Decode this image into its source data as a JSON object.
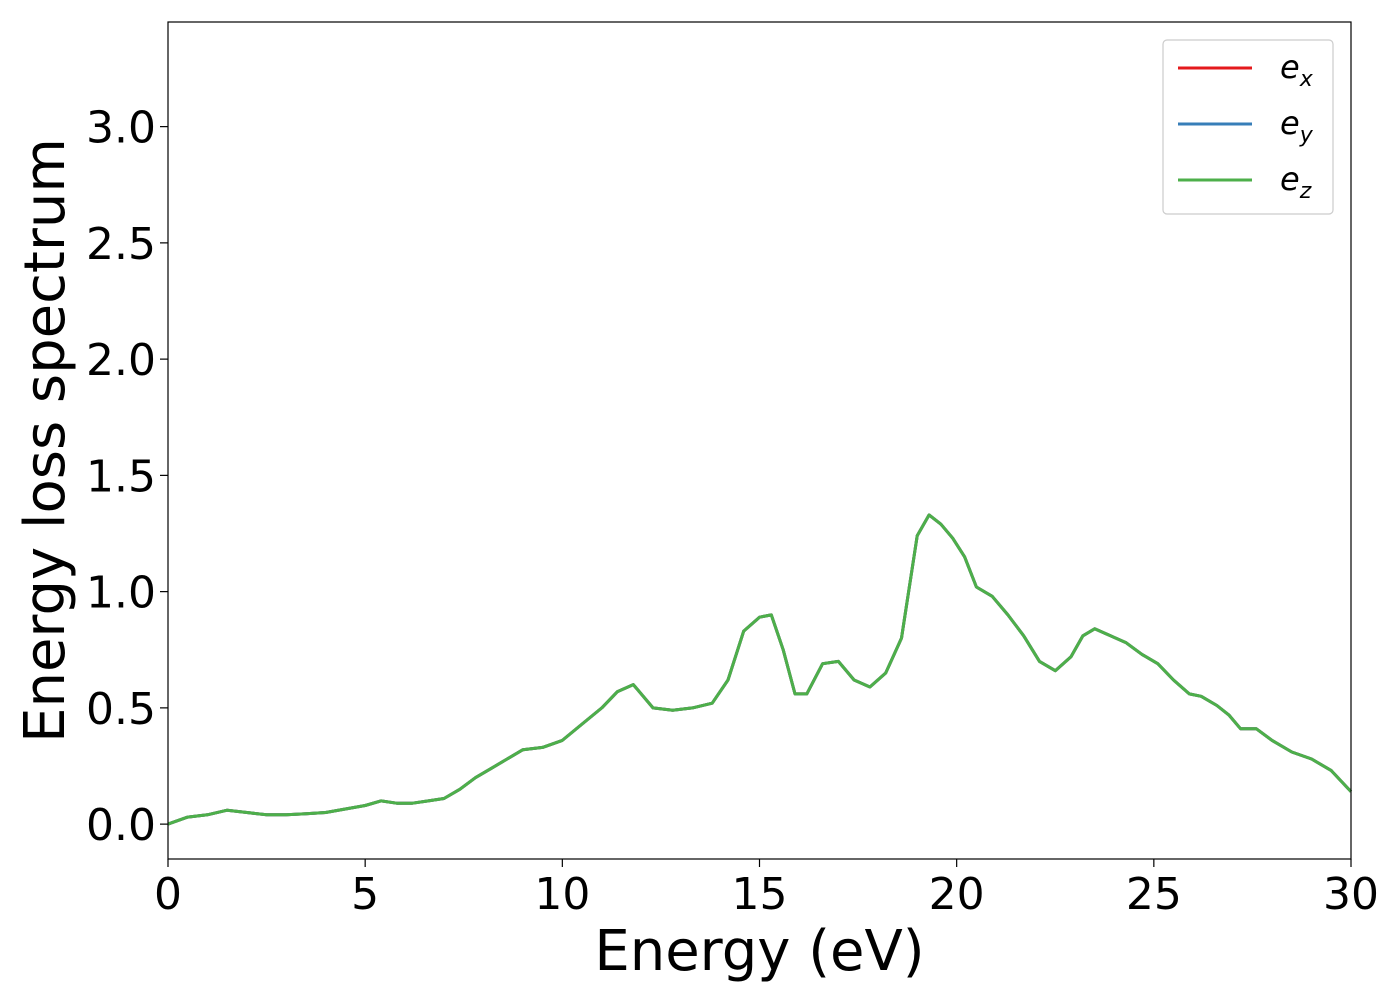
{
  "chart_data": {
    "type": "line",
    "title": "",
    "xlabel": "Energy (eV)",
    "ylabel": "Energy loss spectrum",
    "xlim": [
      0,
      30
    ],
    "ylim": [
      -0.15,
      3.45
    ],
    "xticks": [
      0,
      5,
      10,
      15,
      20,
      25,
      30
    ],
    "xtick_labels": [
      "0",
      "5",
      "10",
      "15",
      "20",
      "25",
      "30"
    ],
    "yticks": [
      0.0,
      0.5,
      1.0,
      1.5,
      2.0,
      2.5,
      3.0
    ],
    "ytick_labels": [
      "0.0",
      "0.5",
      "1.0",
      "1.5",
      "2.0",
      "2.5",
      "3.0"
    ],
    "grid": false,
    "legend_position": "top-right",
    "x": [
      0,
      0.5,
      1.0,
      1.5,
      2.0,
      2.5,
      3.0,
      3.5,
      4.0,
      4.5,
      5.0,
      5.4,
      5.8,
      6.2,
      6.6,
      7.0,
      7.4,
      7.8,
      8.2,
      8.6,
      9.0,
      9.5,
      10.0,
      10.5,
      11.0,
      11.4,
      11.8,
      12.3,
      12.8,
      13.3,
      13.8,
      14.2,
      14.6,
      15.0,
      15.3,
      15.6,
      15.9,
      16.2,
      16.6,
      17.0,
      17.4,
      17.8,
      18.2,
      18.6,
      19.0,
      19.3,
      19.6,
      19.9,
      20.2,
      20.5,
      20.9,
      21.3,
      21.7,
      22.1,
      22.5,
      22.9,
      23.2,
      23.5,
      23.9,
      24.3,
      24.7,
      25.1,
      25.5,
      25.9,
      26.2,
      26.6,
      26.9,
      27.2,
      27.6,
      28.0,
      28.5,
      29.0,
      29.5,
      30.0
    ],
    "series": [
      {
        "name": "e_x",
        "label_base": "e",
        "label_sub": "x",
        "color": "#e41a1c",
        "y": [
          0.0,
          0.03,
          0.04,
          0.06,
          0.05,
          0.04,
          0.04,
          0.045,
          0.05,
          0.065,
          0.08,
          0.1,
          0.09,
          0.09,
          0.1,
          0.11,
          0.15,
          0.2,
          0.24,
          0.28,
          0.32,
          0.33,
          0.36,
          0.43,
          0.5,
          0.57,
          0.6,
          0.5,
          0.49,
          0.5,
          0.52,
          0.62,
          0.83,
          0.89,
          0.9,
          0.75,
          0.56,
          0.56,
          0.69,
          0.7,
          0.62,
          0.59,
          0.65,
          0.8,
          1.24,
          1.33,
          1.29,
          1.23,
          1.15,
          1.02,
          0.98,
          0.9,
          0.81,
          0.7,
          0.66,
          0.72,
          0.81,
          0.84,
          0.81,
          0.78,
          0.73,
          0.69,
          0.62,
          0.56,
          0.55,
          0.51,
          0.47,
          0.41,
          0.41,
          0.36,
          0.31,
          0.28,
          0.23,
          0.14
        ]
      },
      {
        "name": "e_y",
        "label_base": "e",
        "label_sub": "y",
        "color": "#377eb8",
        "y": [
          0.0,
          0.03,
          0.04,
          0.06,
          0.05,
          0.04,
          0.04,
          0.045,
          0.05,
          0.065,
          0.08,
          0.1,
          0.09,
          0.09,
          0.1,
          0.11,
          0.15,
          0.2,
          0.24,
          0.28,
          0.32,
          0.33,
          0.36,
          0.43,
          0.5,
          0.57,
          0.6,
          0.5,
          0.49,
          0.5,
          0.52,
          0.62,
          0.83,
          0.89,
          0.9,
          0.75,
          0.56,
          0.56,
          0.69,
          0.7,
          0.62,
          0.59,
          0.65,
          0.8,
          1.24,
          1.33,
          1.29,
          1.23,
          1.15,
          1.02,
          0.98,
          0.9,
          0.81,
          0.7,
          0.66,
          0.72,
          0.81,
          0.84,
          0.81,
          0.78,
          0.73,
          0.69,
          0.62,
          0.56,
          0.55,
          0.51,
          0.47,
          0.41,
          0.41,
          0.36,
          0.31,
          0.28,
          0.23,
          0.14
        ]
      },
      {
        "name": "e_z",
        "label_base": "e",
        "label_sub": "z",
        "color": "#4daf4a",
        "y": [
          0.0,
          0.03,
          0.04,
          0.06,
          0.05,
          0.04,
          0.04,
          0.045,
          0.05,
          0.065,
          0.08,
          0.1,
          0.09,
          0.09,
          0.1,
          0.11,
          0.15,
          0.2,
          0.24,
          0.28,
          0.32,
          0.33,
          0.36,
          0.43,
          0.5,
          0.57,
          0.6,
          0.5,
          0.49,
          0.5,
          0.52,
          0.62,
          0.83,
          0.89,
          0.9,
          0.75,
          0.56,
          0.56,
          0.69,
          0.7,
          0.62,
          0.59,
          0.65,
          0.8,
          1.24,
          1.33,
          1.29,
          1.23,
          1.15,
          1.02,
          0.98,
          0.9,
          0.81,
          0.7,
          0.66,
          0.72,
          0.81,
          0.84,
          0.81,
          0.78,
          0.73,
          0.69,
          0.62,
          0.56,
          0.55,
          0.51,
          0.47,
          0.41,
          0.41,
          0.36,
          0.31,
          0.28,
          0.23,
          0.14
        ]
      }
    ]
  }
}
